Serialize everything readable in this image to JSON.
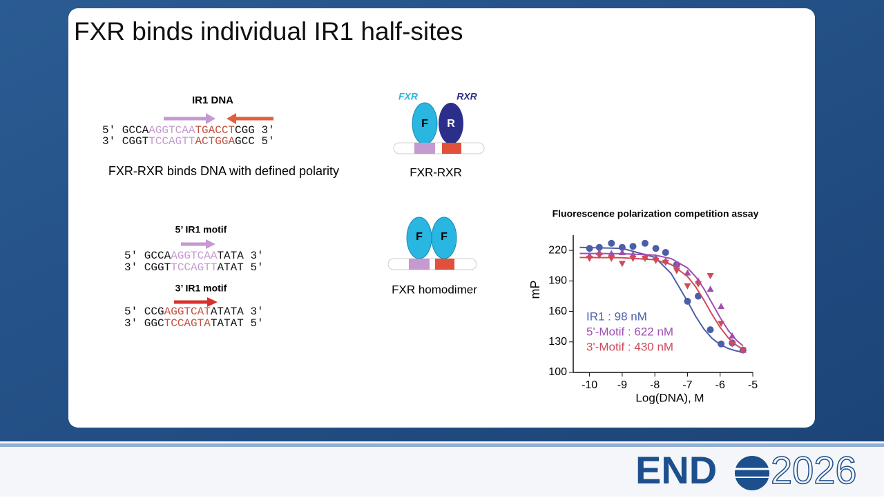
{
  "slide_title": "FXR binds individual IR1 half-sites",
  "ir1": {
    "label": "IR1 DNA",
    "lines": [
      [
        {
          "text": "5′ GCCA",
          "color": "#111111"
        },
        {
          "text": "AGGTCAA",
          "color": "#c49ad0"
        },
        {
          "text": "TGACCT",
          "color": "#c0503e"
        },
        {
          "text": "CGG 3′",
          "color": "#111111"
        }
      ],
      [
        {
          "text": "3′ CGGT",
          "color": "#111111"
        },
        {
          "text": "TCCAGTT",
          "color": "#c49ad0"
        },
        {
          "text": "ACTGGA",
          "color": "#c0503e"
        },
        {
          "text": "GCC 5′",
          "color": "#111111"
        }
      ]
    ],
    "caption": "FXR-RXR binds DNA with defined polarity"
  },
  "fxr_rxr": {
    "labels": [
      "FXR",
      "RXR"
    ],
    "letters": [
      "F",
      "R"
    ],
    "caption": "FXR-RXR"
  },
  "motif5": {
    "label": "5’ IR1 motif",
    "lines": [
      [
        {
          "text": "5′ GCCA",
          "color": "#111111"
        },
        {
          "text": "AGGTCAA",
          "color": "#c49ad0"
        },
        {
          "text": "TATA 3′",
          "color": "#111111"
        }
      ],
      [
        {
          "text": "3′ CGGT",
          "color": "#111111"
        },
        {
          "text": "TCCAGTT",
          "color": "#c49ad0"
        },
        {
          "text": "ATAT 5′",
          "color": "#111111"
        }
      ]
    ]
  },
  "motif3": {
    "label": "3’ IR1 motif",
    "lines": [
      [
        {
          "text": "5′ CCG",
          "color": "#111111"
        },
        {
          "text": "AGGTCAT",
          "color": "#c0503e"
        },
        {
          "text": "ATATA 3′",
          "color": "#111111"
        }
      ],
      [
        {
          "text": "3′ GGC",
          "color": "#111111"
        },
        {
          "text": "TCCAGTA",
          "color": "#c0503e"
        },
        {
          "text": "TATAT 5′",
          "color": "#111111"
        }
      ]
    ]
  },
  "homodimer": {
    "letters": [
      "F",
      "F"
    ],
    "caption": "FXR homodimer"
  },
  "chart_data": {
    "type": "scatter",
    "title": "Fluorescence polarization competition assay",
    "x_label": "Log(DNA), M",
    "y_label": "mP",
    "xlim": [
      -10.5,
      -5
    ],
    "ylim": [
      100,
      235
    ],
    "xticks": [
      -10,
      -9,
      -8,
      -7,
      -6,
      -5
    ],
    "yticks": [
      100,
      130,
      160,
      190,
      220
    ],
    "x": [
      -10,
      -9.7,
      -9.33,
      -9,
      -8.67,
      -8.3,
      -7.97,
      -7.67,
      -7.33,
      -7,
      -6.67,
      -6.3,
      -5.97,
      -5.63,
      -5.3
    ],
    "fit_x": [
      -10.3,
      -9,
      -8,
      -7.5,
      -7,
      -6.75,
      -6.5,
      -6.25,
      -6,
      -5.75,
      -5.5,
      -5.3
    ],
    "series": [
      {
        "name": "IR1 : 98 nM",
        "color": "#4a5fa8",
        "marker": "circle",
        "values": [
          222,
          223,
          227,
          223,
          224,
          227,
          222,
          218,
          206,
          170,
          175,
          142,
          128,
          129,
          122
        ],
        "fit": [
          223,
          222,
          213.3,
          197.3,
          170,
          155.2,
          142.8,
          133.6,
          127.4,
          123.5,
          121.1,
          120
        ]
      },
      {
        "name": "5'-Motif : 622 nM",
        "color": "#a050b0",
        "marker": "triangle-up",
        "values": [
          215,
          218,
          217,
          218,
          216,
          214,
          213,
          210,
          206,
          198,
          190,
          182,
          165,
          136,
          122
        ],
        "fit": [
          217,
          216.8,
          215.4,
          212,
          202.8,
          194.2,
          182.4,
          168.3,
          153.9,
          141.3,
          131.6,
          126.2
        ]
      },
      {
        "name": "3'-Motif : 430 nM",
        "color": "#d04a5a",
        "marker": "triangle-down",
        "values": [
          212,
          215,
          212,
          207,
          212,
          212,
          210,
          208,
          200,
          185,
          187,
          195,
          148,
          128,
          122
        ],
        "fit": [
          213,
          212.8,
          210.8,
          206.2,
          194.4,
          184.2,
          171.3,
          157.2,
          144.3,
          134,
          126.7,
          122.7
        ]
      }
    ]
  },
  "logo": {
    "left": "END",
    "right": "2026"
  }
}
